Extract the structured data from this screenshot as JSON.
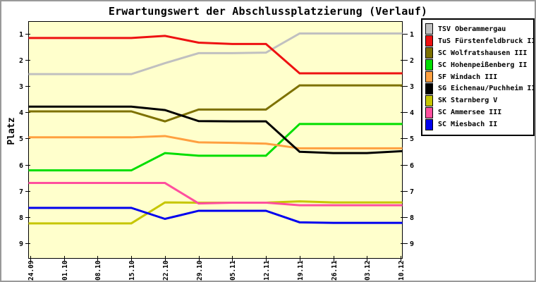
{
  "window": {
    "background": "#FFFFFF",
    "frame_color": "#999999"
  },
  "chart_data": {
    "type": "line",
    "title": "Erwartungswert der Abschlussplatzierung (Verlauf)",
    "ylabel": "Platz",
    "xlabel": "",
    "plot_background": "#FFFFCC",
    "axis_color": "#000000",
    "grid": false,
    "legend_position": "right",
    "y_inverted": true,
    "ylim": [
      1,
      9
    ],
    "y_ticks": [
      1,
      2,
      3,
      4,
      5,
      6,
      7,
      8,
      9
    ],
    "x_tick_labels": [
      "24.09",
      "01.10",
      "08.10",
      "15.10",
      "22.10",
      "29.10",
      "05.11",
      "12.11",
      "19.11",
      "26.11",
      "03.12",
      "10.12"
    ],
    "series": [
      {
        "name": "TSV Oberammergau",
        "color": "#C0C0C0",
        "values": [
          2.55,
          2.55,
          2.55,
          2.55,
          2.13,
          1.75,
          1.75,
          1.73,
          1.0,
          1.0,
          1.0,
          1.0
        ]
      },
      {
        "name": "TuS Fürstenfeldbruck II",
        "color": "#EE1111",
        "values": [
          1.17,
          1.17,
          1.17,
          1.17,
          1.09,
          1.35,
          1.4,
          1.4,
          2.52,
          2.52,
          2.52,
          2.52
        ]
      },
      {
        "name": "SC Wolfratshausen III",
        "color": "#7D7100",
        "values": [
          3.97,
          3.97,
          3.97,
          3.97,
          4.35,
          3.9,
          3.9,
          3.9,
          2.98,
          2.98,
          2.98,
          2.98
        ]
      },
      {
        "name": "SC Hohenpeißenberg II",
        "color": "#00DE00",
        "values": [
          6.22,
          6.22,
          6.22,
          6.22,
          5.56,
          5.66,
          5.66,
          5.66,
          4.45,
          4.45,
          4.45,
          4.45
        ]
      },
      {
        "name": "SF Windach III",
        "color": "#FFA040",
        "values": [
          4.96,
          4.96,
          4.96,
          4.96,
          4.91,
          5.15,
          5.17,
          5.2,
          5.38,
          5.38,
          5.38,
          5.38
        ]
      },
      {
        "name": "SG Eichenau/Puchheim II",
        "color": "#000000",
        "values": [
          3.79,
          3.79,
          3.79,
          3.79,
          3.92,
          4.34,
          4.35,
          4.35,
          5.51,
          5.56,
          5.56,
          5.49
        ]
      },
      {
        "name": "SK Starnberg V",
        "color": "#C6C600",
        "values": [
          8.24,
          8.24,
          8.24,
          8.24,
          7.44,
          7.45,
          7.45,
          7.45,
          7.4,
          7.44,
          7.44,
          7.44
        ]
      },
      {
        "name": "SC Ammersee III",
        "color": "#FF4F9E",
        "values": [
          6.7,
          6.7,
          6.7,
          6.7,
          6.7,
          7.48,
          7.45,
          7.45,
          7.55,
          7.55,
          7.55,
          7.55
        ]
      },
      {
        "name": "SC Miesbach II",
        "color": "#0000EE",
        "values": [
          7.65,
          7.65,
          7.65,
          7.65,
          8.07,
          7.76,
          7.76,
          7.76,
          8.2,
          8.22,
          8.22,
          8.22
        ]
      }
    ]
  }
}
